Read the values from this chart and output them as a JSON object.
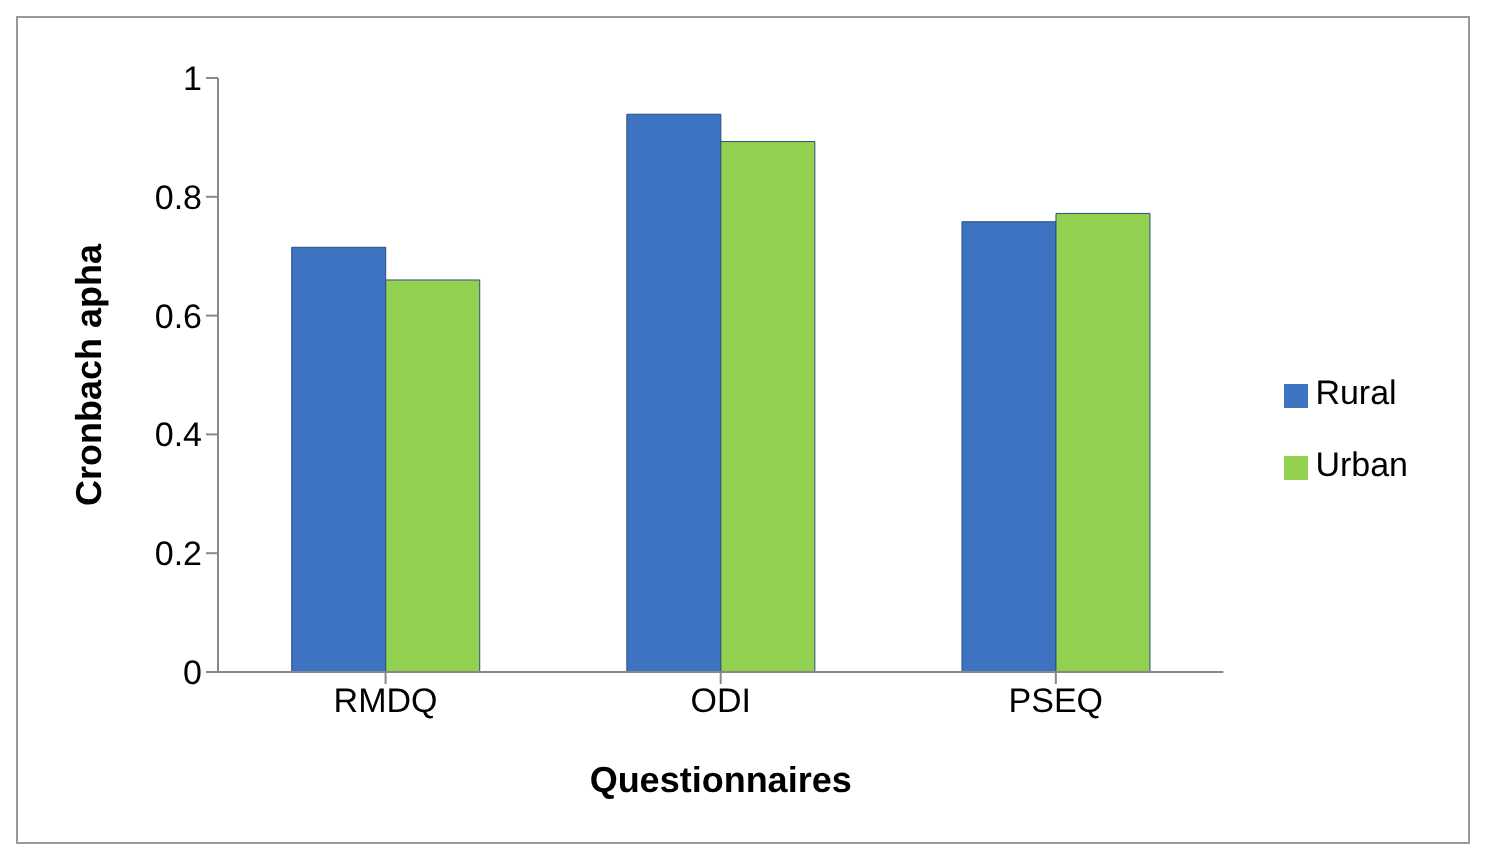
{
  "chart_data": {
    "type": "bar",
    "xlabel": "Questionnaires",
    "ylabel": "Cronbach apha",
    "categories": [
      "RMDQ",
      "ODI",
      "PSEQ"
    ],
    "series": [
      {
        "name": "Rural",
        "color": "#3d73c0",
        "values": [
          0.715,
          0.939,
          0.758
        ]
      },
      {
        "name": "Urban",
        "color": "#92d050",
        "values": [
          0.66,
          0.893,
          0.772
        ]
      }
    ],
    "ylim": [
      0,
      1
    ],
    "yticks": [
      0,
      {
        "value": 0.2,
        "label": "0.2"
      },
      {
        "value": 0.4,
        "label": "0.4"
      },
      {
        "value": 0.6,
        "label": "0.6"
      },
      {
        "value": 0.8,
        "label": "0.8"
      },
      1
    ],
    "grid": false,
    "legend": "right"
  }
}
